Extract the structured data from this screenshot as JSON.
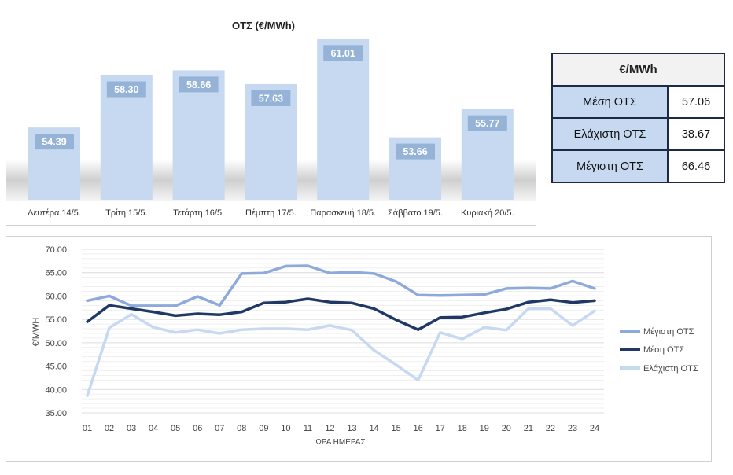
{
  "chart_data": [
    {
      "type": "bar",
      "title": "ΟΤΣ (€/MWh)",
      "categories": [
        "Δευτέρα 14/5.",
        "Τρίτη 15/5.",
        "Τετάρτη 16/5.",
        "Πέμπτη 17/5.",
        "Παρασκευή 18/5.",
        "Σάββατο 19/5.",
        "Κυριακή 20/5."
      ],
      "values": [
        54.39,
        58.3,
        58.66,
        57.63,
        61.01,
        53.66,
        55.77
      ],
      "value_labels": [
        "54.39",
        "58.30",
        "58.66",
        "57.63",
        "61.01",
        "53.66",
        "55.77"
      ],
      "ylim": [
        49,
        61.5
      ],
      "grid": false,
      "bar_color": "#c6d9f1",
      "label_bg": "#95b3d7"
    },
    {
      "type": "line",
      "xlabel": "ΩΡΑ ΗΜΕΡΑΣ",
      "ylabel": "€/MWH",
      "x": [
        "01",
        "02",
        "03",
        "04",
        "05",
        "06",
        "07",
        "08",
        "09",
        "10",
        "11",
        "12",
        "13",
        "14",
        "15",
        "16",
        "17",
        "18",
        "19",
        "20",
        "21",
        "22",
        "23",
        "24"
      ],
      "ylim": [
        35,
        70
      ],
      "yticks": [
        "35.00",
        "40.00",
        "45.00",
        "50.00",
        "55.00",
        "60.00",
        "65.00",
        "70.00"
      ],
      "grid": true,
      "legend_position": "right",
      "series": [
        {
          "name": "Μέγιστη ΟΤΣ",
          "color": "#8eaadb",
          "values": [
            59.0,
            60.0,
            57.9,
            57.9,
            57.9,
            59.9,
            58.0,
            64.8,
            64.9,
            66.4,
            66.46,
            64.9,
            65.1,
            64.8,
            63.1,
            60.2,
            60.1,
            60.2,
            60.3,
            61.6,
            61.7,
            61.6,
            63.2,
            61.6
          ]
        },
        {
          "name": "Μέση ΟΤΣ",
          "color": "#1f3864",
          "values": [
            54.5,
            58.0,
            57.3,
            56.6,
            55.8,
            56.2,
            56.0,
            56.6,
            58.5,
            58.7,
            59.4,
            58.7,
            58.5,
            57.3,
            54.9,
            52.8,
            55.4,
            55.5,
            56.4,
            57.2,
            58.7,
            59.2,
            58.6,
            59.0
          ]
        },
        {
          "name": "Ελάχιστη ΟΤΣ",
          "color": "#c6d9f1",
          "values": [
            38.67,
            53.2,
            56.1,
            53.3,
            52.2,
            52.8,
            52.0,
            52.8,
            53.0,
            53.0,
            52.8,
            53.7,
            52.7,
            48.4,
            45.3,
            42.0,
            52.2,
            50.8,
            53.3,
            52.7,
            57.3,
            57.3,
            53.7,
            56.8
          ]
        }
      ]
    }
  ],
  "stats": {
    "header": "€/MWh",
    "rows": [
      {
        "label": "Μέση ΟΤΣ",
        "value": "57.06"
      },
      {
        "label": "Ελάχιστη ΟΤΣ",
        "value": "38.67"
      },
      {
        "label": "Μέγιστη ΟΤΣ",
        "value": "66.46"
      }
    ]
  }
}
